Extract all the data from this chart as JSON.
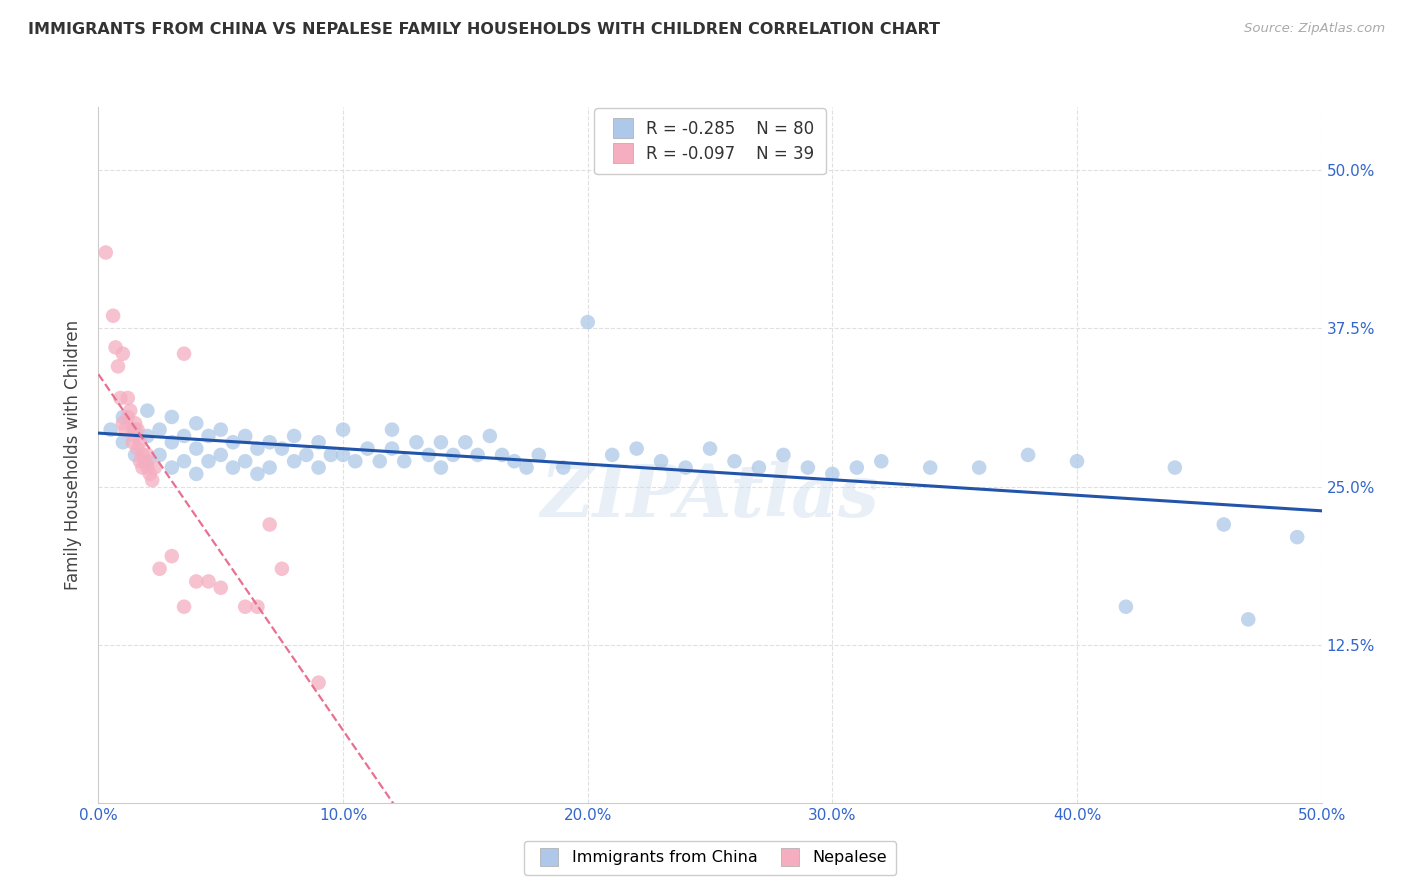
{
  "title": "IMMIGRANTS FROM CHINA VS NEPALESE FAMILY HOUSEHOLDS WITH CHILDREN CORRELATION CHART",
  "source": "Source: ZipAtlas.com",
  "ylabel": "Family Households with Children",
  "xlim": [
    0.0,
    0.5
  ],
  "ylim": [
    0.0,
    0.55
  ],
  "xticks": [
    0.0,
    0.1,
    0.2,
    0.3,
    0.4,
    0.5
  ],
  "yticks": [
    0.125,
    0.25,
    0.375,
    0.5
  ],
  "ytick_labels": [
    "12.5%",
    "25.0%",
    "37.5%",
    "50.0%"
  ],
  "xtick_labels": [
    "0.0%",
    "10.0%",
    "20.0%",
    "30.0%",
    "40.0%",
    "50.0%"
  ],
  "legend_blue_r": "R = -0.285",
  "legend_blue_n": "N = 80",
  "legend_pink_r": "R = -0.097",
  "legend_pink_n": "N = 39",
  "blue_color": "#adc8e8",
  "pink_color": "#f5aec0",
  "blue_line_color": "#2255aa",
  "pink_line_color": "#e87090",
  "blue_scatter": [
    [
      0.005,
      0.295
    ],
    [
      0.01,
      0.305
    ],
    [
      0.01,
      0.285
    ],
    [
      0.015,
      0.295
    ],
    [
      0.015,
      0.275
    ],
    [
      0.02,
      0.31
    ],
    [
      0.02,
      0.29
    ],
    [
      0.02,
      0.27
    ],
    [
      0.025,
      0.295
    ],
    [
      0.025,
      0.275
    ],
    [
      0.03,
      0.305
    ],
    [
      0.03,
      0.285
    ],
    [
      0.03,
      0.265
    ],
    [
      0.035,
      0.29
    ],
    [
      0.035,
      0.27
    ],
    [
      0.04,
      0.3
    ],
    [
      0.04,
      0.28
    ],
    [
      0.04,
      0.26
    ],
    [
      0.045,
      0.29
    ],
    [
      0.045,
      0.27
    ],
    [
      0.05,
      0.295
    ],
    [
      0.05,
      0.275
    ],
    [
      0.055,
      0.285
    ],
    [
      0.055,
      0.265
    ],
    [
      0.06,
      0.29
    ],
    [
      0.06,
      0.27
    ],
    [
      0.065,
      0.28
    ],
    [
      0.065,
      0.26
    ],
    [
      0.07,
      0.285
    ],
    [
      0.07,
      0.265
    ],
    [
      0.075,
      0.28
    ],
    [
      0.08,
      0.29
    ],
    [
      0.08,
      0.27
    ],
    [
      0.085,
      0.275
    ],
    [
      0.09,
      0.285
    ],
    [
      0.09,
      0.265
    ],
    [
      0.095,
      0.275
    ],
    [
      0.1,
      0.295
    ],
    [
      0.1,
      0.275
    ],
    [
      0.105,
      0.27
    ],
    [
      0.11,
      0.28
    ],
    [
      0.115,
      0.27
    ],
    [
      0.12,
      0.28
    ],
    [
      0.12,
      0.295
    ],
    [
      0.125,
      0.27
    ],
    [
      0.13,
      0.285
    ],
    [
      0.135,
      0.275
    ],
    [
      0.14,
      0.285
    ],
    [
      0.14,
      0.265
    ],
    [
      0.145,
      0.275
    ],
    [
      0.15,
      0.285
    ],
    [
      0.155,
      0.275
    ],
    [
      0.16,
      0.29
    ],
    [
      0.165,
      0.275
    ],
    [
      0.17,
      0.27
    ],
    [
      0.175,
      0.265
    ],
    [
      0.18,
      0.275
    ],
    [
      0.19,
      0.265
    ],
    [
      0.2,
      0.38
    ],
    [
      0.21,
      0.275
    ],
    [
      0.22,
      0.28
    ],
    [
      0.23,
      0.27
    ],
    [
      0.24,
      0.265
    ],
    [
      0.25,
      0.28
    ],
    [
      0.26,
      0.27
    ],
    [
      0.27,
      0.265
    ],
    [
      0.28,
      0.275
    ],
    [
      0.29,
      0.265
    ],
    [
      0.3,
      0.26
    ],
    [
      0.31,
      0.265
    ],
    [
      0.32,
      0.27
    ],
    [
      0.34,
      0.265
    ],
    [
      0.36,
      0.265
    ],
    [
      0.38,
      0.275
    ],
    [
      0.4,
      0.27
    ],
    [
      0.42,
      0.155
    ],
    [
      0.44,
      0.265
    ],
    [
      0.46,
      0.22
    ],
    [
      0.47,
      0.145
    ],
    [
      0.49,
      0.21
    ]
  ],
  "pink_scatter": [
    [
      0.003,
      0.435
    ],
    [
      0.006,
      0.385
    ],
    [
      0.007,
      0.36
    ],
    [
      0.008,
      0.345
    ],
    [
      0.009,
      0.32
    ],
    [
      0.01,
      0.355
    ],
    [
      0.01,
      0.3
    ],
    [
      0.011,
      0.295
    ],
    [
      0.012,
      0.305
    ],
    [
      0.012,
      0.32
    ],
    [
      0.013,
      0.31
    ],
    [
      0.014,
      0.295
    ],
    [
      0.014,
      0.285
    ],
    [
      0.015,
      0.3
    ],
    [
      0.015,
      0.29
    ],
    [
      0.016,
      0.295
    ],
    [
      0.016,
      0.28
    ],
    [
      0.017,
      0.285
    ],
    [
      0.017,
      0.27
    ],
    [
      0.018,
      0.275
    ],
    [
      0.018,
      0.265
    ],
    [
      0.019,
      0.27
    ],
    [
      0.02,
      0.275
    ],
    [
      0.02,
      0.265
    ],
    [
      0.021,
      0.26
    ],
    [
      0.022,
      0.255
    ],
    [
      0.023,
      0.265
    ],
    [
      0.025,
      0.185
    ],
    [
      0.03,
      0.195
    ],
    [
      0.035,
      0.355
    ],
    [
      0.035,
      0.155
    ],
    [
      0.04,
      0.175
    ],
    [
      0.045,
      0.175
    ],
    [
      0.05,
      0.17
    ],
    [
      0.06,
      0.155
    ],
    [
      0.065,
      0.155
    ],
    [
      0.07,
      0.22
    ],
    [
      0.075,
      0.185
    ],
    [
      0.09,
      0.095
    ]
  ],
  "watermark": "ZIPAtlas",
  "background_color": "#ffffff",
  "grid_color": "#e0e0e0"
}
